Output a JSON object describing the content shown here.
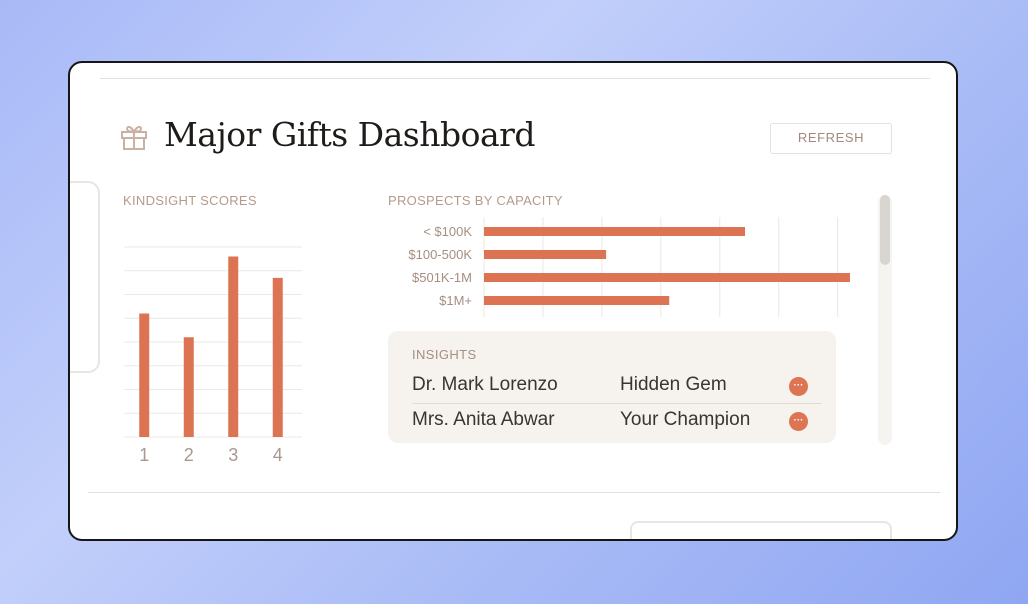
{
  "header": {
    "title": "Major Gifts Dashboard",
    "refresh_label": "REFRESH",
    "icon": "gift-icon"
  },
  "colors": {
    "accent": "#dc7352",
    "label": "#b59a8b",
    "title": "#1e1b18",
    "background_gradient": [
      "#a8b9f7",
      "#8fa6f2"
    ]
  },
  "kindsight_chart": {
    "label": "KINDSIGHT SCORES"
  },
  "prospects_chart": {
    "label": "PROSPECTS BY CAPACITY"
  },
  "chart_data": [
    {
      "type": "bar",
      "title": "KINDSIGHT SCORES",
      "categories": [
        "1",
        "2",
        "3",
        "4"
      ],
      "values": [
        5.2,
        4.2,
        7.6,
        6.7
      ],
      "ylim": [
        0,
        8
      ],
      "grid": true,
      "xlabel": "",
      "ylabel": ""
    },
    {
      "type": "bar",
      "orientation": "horizontal",
      "title": "PROSPECTS BY CAPACITY",
      "categories": [
        "< $100K",
        "$100-500K",
        "$501K-1M",
        "$1M+"
      ],
      "values": [
        6.2,
        2.9,
        8.9,
        4.4
      ],
      "xlim": [
        0,
        10
      ],
      "grid": true,
      "xlabel": "",
      "ylabel": ""
    }
  ],
  "insights": {
    "label": "INSIGHTS",
    "rows": [
      {
        "name": "Dr. Mark Lorenzo",
        "tag": "Hidden Gem",
        "action": "···"
      },
      {
        "name": "Mrs. Anita Abwar",
        "tag": "Your Champion",
        "action": "···"
      }
    ]
  }
}
